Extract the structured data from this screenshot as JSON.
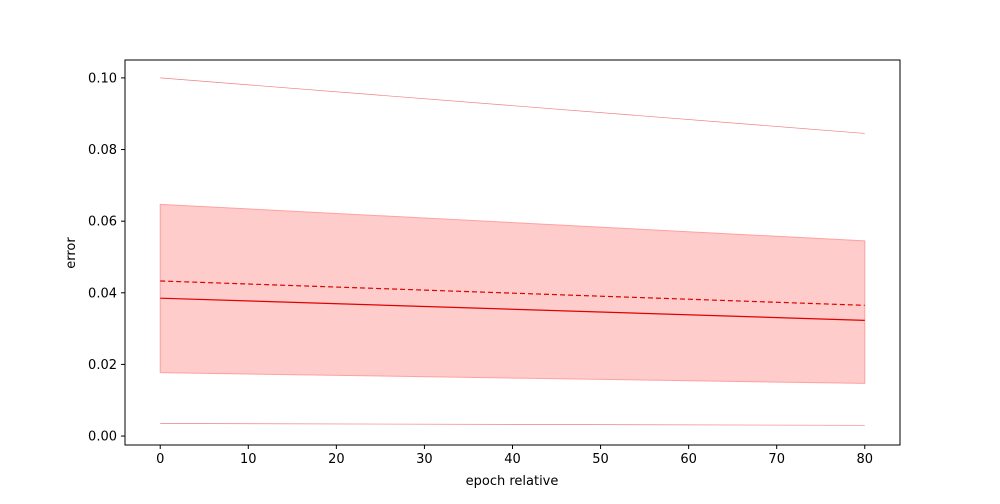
{
  "chart_data": {
    "type": "line",
    "title": "",
    "xlabel": "epoch relative",
    "ylabel": "error",
    "xlim": [
      -4,
      84
    ],
    "ylim": [
      -0.0025,
      0.105
    ],
    "x_ticks": [
      0,
      10,
      20,
      30,
      40,
      50,
      60,
      70,
      80
    ],
    "x_tick_labels": [
      "0",
      "10",
      "20",
      "30",
      "40",
      "50",
      "60",
      "70",
      "80"
    ],
    "y_ticks": [
      0.0,
      0.02,
      0.04,
      0.06,
      0.08,
      0.1
    ],
    "y_tick_labels": [
      "0.00",
      "0.02",
      "0.04",
      "0.06",
      "0.08",
      "0.10"
    ],
    "grid": false,
    "legend": "none",
    "x": [
      0,
      80
    ],
    "series": [
      {
        "values": [
          0.0385,
          0.0323
        ],
        "style": "solid",
        "color": "#e00000"
      },
      {
        "values": [
          0.0433,
          0.0365
        ],
        "style": "dashed",
        "color": "#e00000"
      },
      {
        "values": [
          0.1,
          0.0845
        ],
        "style": "thin",
        "color": "#f08080"
      },
      {
        "values": [
          0.0035,
          0.003
        ],
        "style": "thin",
        "color": "#f08080"
      }
    ],
    "band": {
      "lower": [
        0.0177,
        0.0147
      ],
      "upper": [
        0.0647,
        0.0545
      ],
      "color": "#ff9999"
    }
  }
}
